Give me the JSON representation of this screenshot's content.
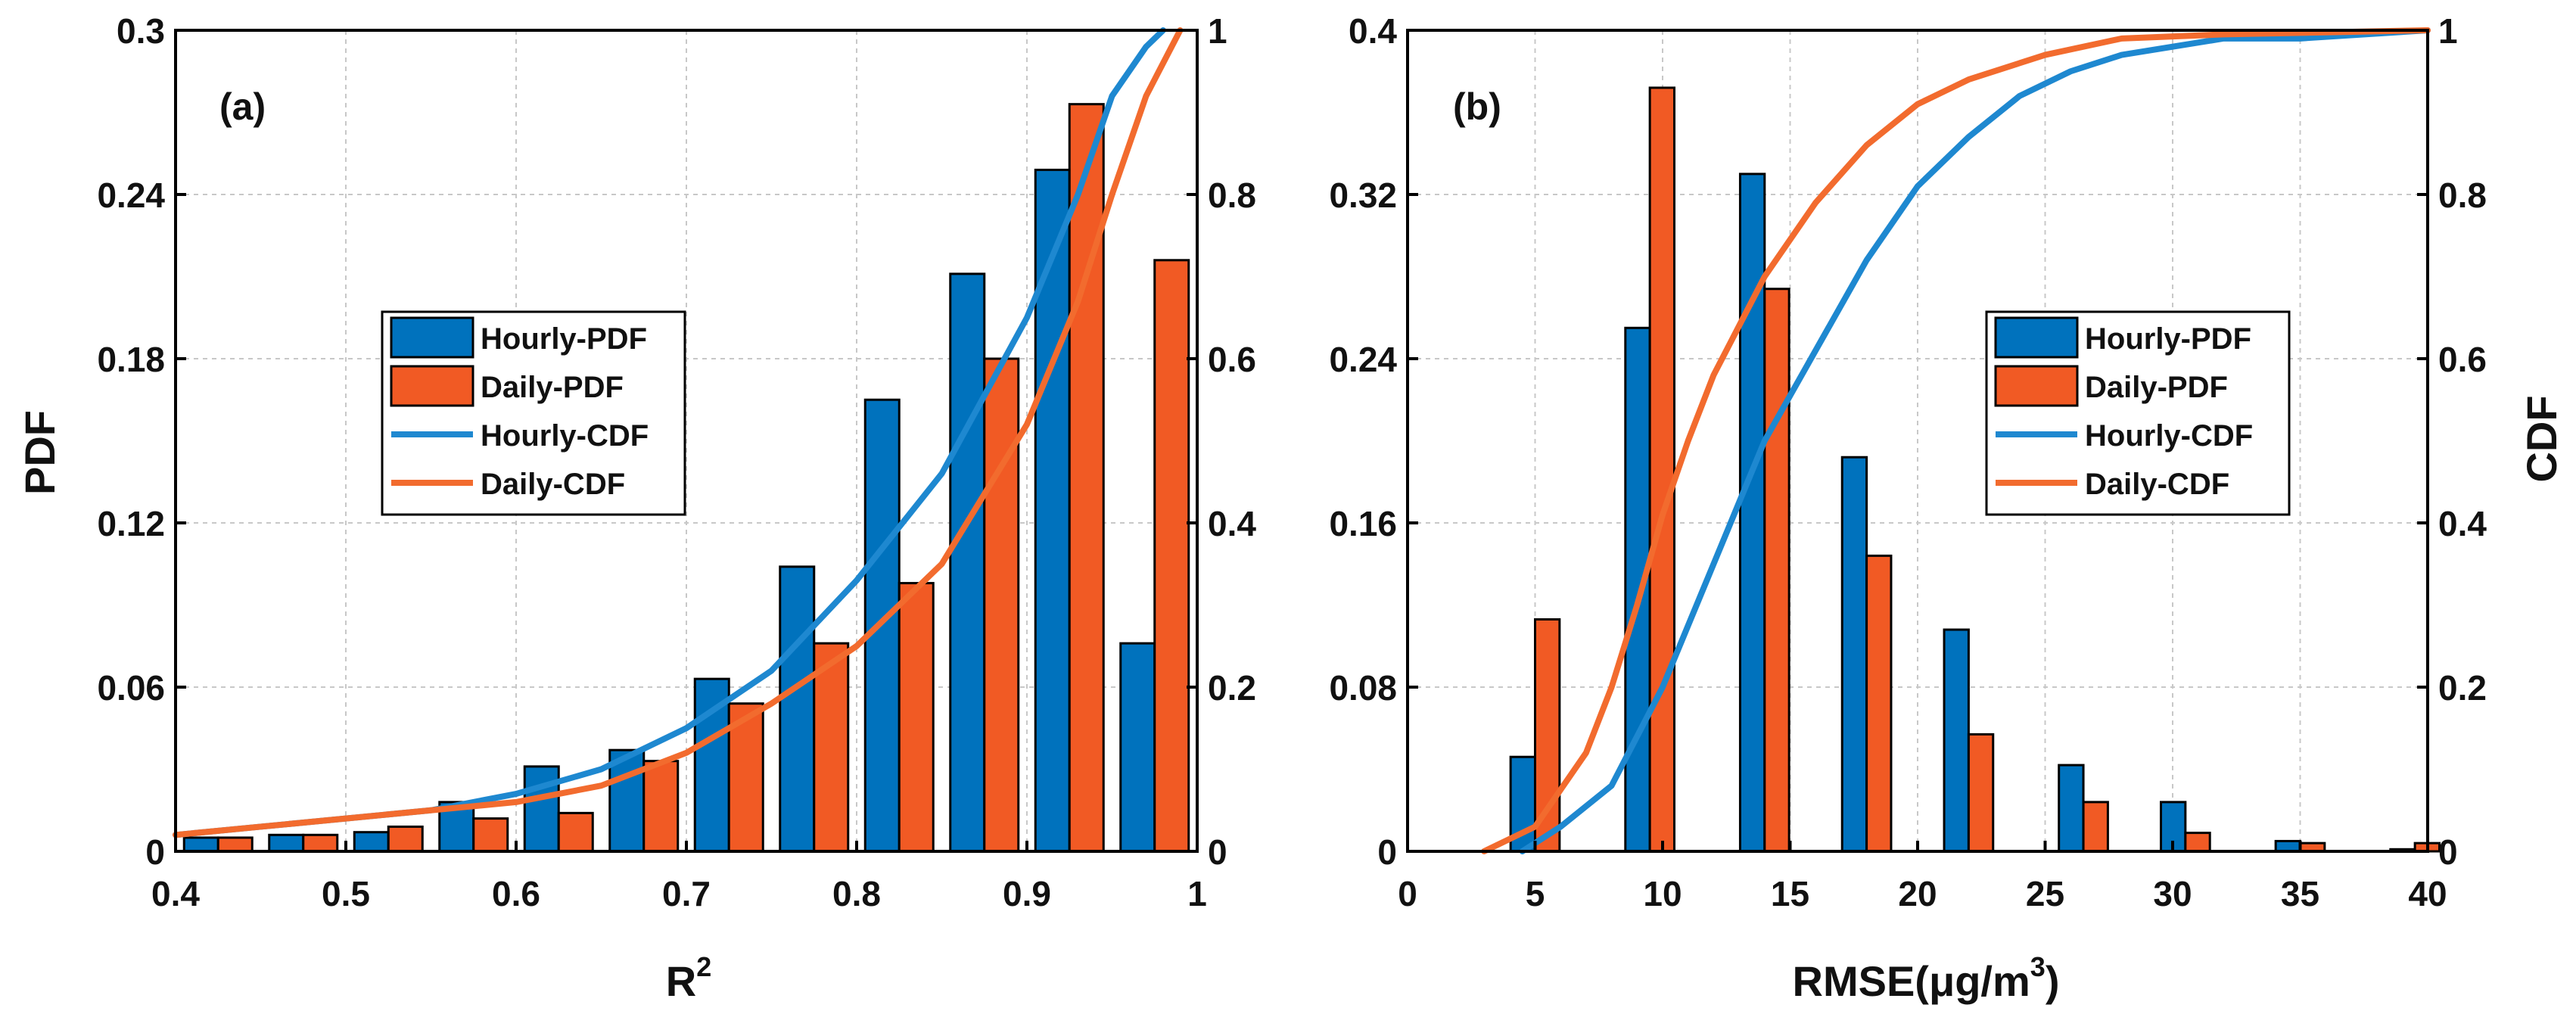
{
  "colors": {
    "hourly": "#0072BD",
    "daily": "#F15A24",
    "hourly_cdf": "#1E88D0",
    "daily_cdf": "#F26B2E",
    "grid": "#c8c8c8",
    "axis": "#000000"
  },
  "chart_data": [
    {
      "type": "bar",
      "panel_label": "(a)",
      "title": "",
      "xlabel": "R",
      "xlabel_sup": "2",
      "ylabel": "PDF",
      "y2label": "",
      "xlim": [
        0.4,
        1.0
      ],
      "ylim": [
        0,
        0.3
      ],
      "y2lim": [
        0,
        1
      ],
      "xticks": [
        0.4,
        0.5,
        0.6,
        0.7,
        0.8,
        0.9,
        1.0
      ],
      "xtick_labels": [
        "0.4",
        "0.5",
        "0.6",
        "0.7",
        "0.8",
        "0.9",
        "1"
      ],
      "yticks": [
        0,
        0.06,
        0.12,
        0.18,
        0.24,
        0.3
      ],
      "ytick_labels": [
        "0",
        "0.06",
        "0.12",
        "0.18",
        "0.24",
        "0.3"
      ],
      "y2ticks": [
        0,
        0.2,
        0.4,
        0.6,
        0.8,
        1.0
      ],
      "y2tick_labels": [
        "0",
        "0.2",
        "0.4",
        "0.6",
        "0.8",
        "1"
      ],
      "grid": true,
      "legend_position": "center-left",
      "legend": [
        "Hourly-PDF",
        "Daily-PDF",
        "Hourly-CDF",
        "Daily-CDF"
      ],
      "bin_centers": [
        0.425,
        0.475,
        0.525,
        0.575,
        0.625,
        0.675,
        0.725,
        0.775,
        0.825,
        0.875,
        0.925,
        0.975
      ],
      "bin_width": 0.05,
      "series": [
        {
          "name": "Hourly-PDF",
          "kind": "bar",
          "values": [
            0.005,
            0.006,
            0.007,
            0.018,
            0.031,
            0.037,
            0.063,
            0.104,
            0.165,
            0.211,
            0.249,
            0.076
          ]
        },
        {
          "name": "Daily-PDF",
          "kind": "bar",
          "values": [
            0.005,
            0.006,
            0.009,
            0.012,
            0.014,
            0.033,
            0.054,
            0.076,
            0.098,
            0.18,
            0.273,
            0.216
          ]
        },
        {
          "name": "Hourly-CDF",
          "kind": "line",
          "x": [
            0.4,
            0.45,
            0.5,
            0.55,
            0.6,
            0.65,
            0.7,
            0.75,
            0.8,
            0.85,
            0.9,
            0.93,
            0.95,
            0.97,
            0.98
          ],
          "y": [
            0.02,
            0.03,
            0.04,
            0.05,
            0.07,
            0.1,
            0.15,
            0.22,
            0.33,
            0.46,
            0.65,
            0.8,
            0.92,
            0.98,
            1.0
          ]
        },
        {
          "name": "Daily-CDF",
          "kind": "line",
          "x": [
            0.4,
            0.45,
            0.5,
            0.55,
            0.6,
            0.65,
            0.7,
            0.75,
            0.8,
            0.85,
            0.9,
            0.93,
            0.95,
            0.97,
            0.99
          ],
          "y": [
            0.02,
            0.03,
            0.04,
            0.05,
            0.06,
            0.08,
            0.12,
            0.18,
            0.25,
            0.35,
            0.52,
            0.67,
            0.8,
            0.92,
            1.0
          ]
        }
      ]
    },
    {
      "type": "bar",
      "panel_label": "(b)",
      "title": "",
      "xlabel": "RMSE(μg/m",
      "xlabel_sup": "3",
      "xlabel_close": ")",
      "ylabel": "",
      "y2label": "CDF",
      "xlim": [
        0,
        40
      ],
      "ylim": [
        0,
        0.4
      ],
      "y2lim": [
        0,
        1
      ],
      "xticks": [
        0,
        5,
        10,
        15,
        20,
        25,
        30,
        35,
        40
      ],
      "xtick_labels": [
        "0",
        "5",
        "10",
        "15",
        "20",
        "25",
        "30",
        "35",
        "40"
      ],
      "yticks": [
        0,
        0.08,
        0.16,
        0.24,
        0.32,
        0.4
      ],
      "ytick_labels": [
        "0",
        "0.08",
        "0.16",
        "0.24",
        "0.32",
        "0.4"
      ],
      "y2ticks": [
        0,
        0.2,
        0.4,
        0.6,
        0.8,
        1.0
      ],
      "y2tick_labels": [
        "0",
        "0.2",
        "0.4",
        "0.6",
        "0.8",
        "1"
      ],
      "grid": true,
      "legend_position": "center-right",
      "legend": [
        "Hourly-PDF",
        "Daily-PDF",
        "Hourly-CDF",
        "Daily-CDF"
      ],
      "bin_centers": [
        5,
        9.5,
        14,
        18,
        22,
        26.5,
        30.5,
        35,
        39.5
      ],
      "bin_width": 2.4,
      "series": [
        {
          "name": "Hourly-PDF",
          "kind": "bar",
          "values": [
            0.046,
            0.255,
            0.33,
            0.192,
            0.108,
            0.042,
            0.024,
            0.005,
            0.001
          ]
        },
        {
          "name": "Daily-PDF",
          "kind": "bar",
          "values": [
            0.113,
            0.372,
            0.274,
            0.144,
            0.057,
            0.024,
            0.009,
            0.004,
            0.004
          ]
        },
        {
          "name": "Hourly-CDF",
          "kind": "line",
          "x": [
            4.5,
            6,
            8,
            10,
            12,
            14,
            16,
            18,
            20,
            22,
            24,
            26,
            28,
            30,
            32,
            35,
            40
          ],
          "y": [
            0,
            0.03,
            0.08,
            0.2,
            0.35,
            0.5,
            0.61,
            0.72,
            0.81,
            0.87,
            0.92,
            0.95,
            0.97,
            0.98,
            0.99,
            0.99,
            1.0
          ]
        },
        {
          "name": "Daily-CDF",
          "kind": "line",
          "x": [
            3,
            5,
            7,
            8,
            9,
            10,
            11,
            12,
            14,
            16,
            18,
            20,
            22,
            25,
            28,
            32,
            40
          ],
          "y": [
            0,
            0.03,
            0.12,
            0.2,
            0.3,
            0.41,
            0.5,
            0.58,
            0.7,
            0.79,
            0.86,
            0.91,
            0.94,
            0.97,
            0.99,
            0.995,
            1.0
          ]
        }
      ]
    }
  ]
}
